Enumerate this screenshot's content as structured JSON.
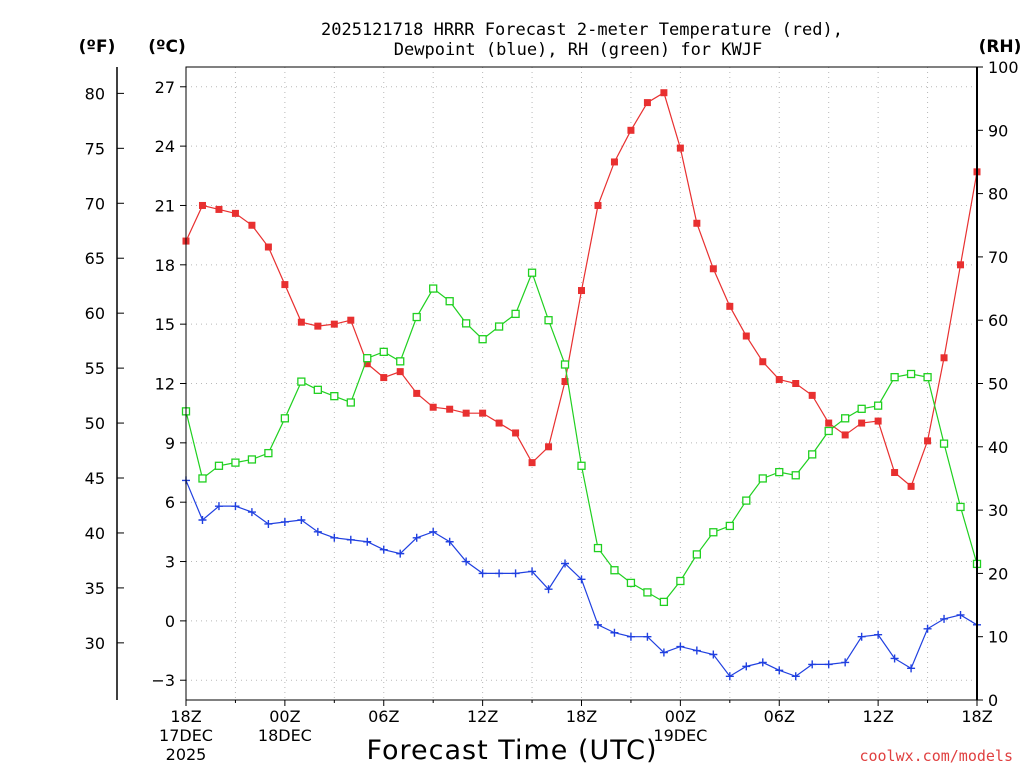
{
  "chart_data": {
    "type": "line",
    "title": "2025121718 HRRR Forecast 2-meter Temperature (red),",
    "subtitle": "Dewpoint (blue), RH (green) for KWJF",
    "xlabel": "Forecast Time (UTC)",
    "credit": "coolwx.com/models",
    "units": {
      "fahrenheit": "(ºF)",
      "celsius": "(ºC)",
      "rh": "(RH)"
    },
    "x_range": [
      0,
      48
    ],
    "ylim_celsius": [
      -4,
      28
    ],
    "ylim_rh": [
      0,
      100
    ],
    "celsius_ticks": [
      -3,
      0,
      3,
      6,
      9,
      12,
      15,
      18,
      21,
      24,
      27
    ],
    "fahrenheit_ticks": [
      30,
      35,
      40,
      45,
      50,
      55,
      60,
      65,
      70,
      75,
      80
    ],
    "rh_ticks": [
      0,
      10,
      20,
      30,
      40,
      50,
      60,
      70,
      80,
      90,
      100
    ],
    "x_ticks": [
      {
        "hour": 0,
        "lines": [
          "18Z",
          "17DEC",
          "2025"
        ]
      },
      {
        "hour": 6,
        "lines": [
          "00Z",
          "18DEC"
        ]
      },
      {
        "hour": 12,
        "lines": [
          "06Z"
        ]
      },
      {
        "hour": 18,
        "lines": [
          "12Z"
        ]
      },
      {
        "hour": 24,
        "lines": [
          "18Z"
        ]
      },
      {
        "hour": 30,
        "lines": [
          "00Z",
          "19DEC"
        ]
      },
      {
        "hour": 36,
        "lines": [
          "06Z"
        ]
      },
      {
        "hour": 42,
        "lines": [
          "12Z"
        ]
      },
      {
        "hour": 48,
        "lines": [
          "18Z"
        ]
      }
    ],
    "series": [
      {
        "name": "2-meter Temperature",
        "axis": "celsius",
        "color": "#e83030",
        "marker": "filled-square",
        "values": [
          19.2,
          21.0,
          20.8,
          20.6,
          20.0,
          18.9,
          17.0,
          15.1,
          14.9,
          15.0,
          15.2,
          13.0,
          12.3,
          12.6,
          11.5,
          10.8,
          10.7,
          10.5,
          10.5,
          10.0,
          9.5,
          8.0,
          8.8,
          12.1,
          16.7,
          21.0,
          23.2,
          24.8,
          26.2,
          26.7,
          23.9,
          20.1,
          17.8,
          15.9,
          14.4,
          13.1,
          12.2,
          12.0,
          11.4,
          10.0,
          9.4,
          10.0,
          10.1,
          7.5,
          6.8,
          9.1,
          13.3,
          18.0,
          22.7
        ]
      },
      {
        "name": "Dewpoint",
        "axis": "celsius",
        "color": "#2040e0",
        "marker": "plus",
        "values": [
          7.1,
          5.1,
          5.8,
          5.8,
          5.5,
          4.9,
          5.0,
          5.1,
          4.5,
          4.2,
          4.1,
          4.0,
          3.6,
          3.4,
          4.2,
          4.5,
          4.0,
          3.0,
          2.4,
          2.4,
          2.4,
          2.5,
          1.6,
          2.9,
          2.1,
          -0.2,
          -0.6,
          -0.8,
          -0.8,
          -1.6,
          -1.3,
          -1.5,
          -1.7,
          -2.8,
          -2.3,
          -2.1,
          -2.5,
          -2.8,
          -2.2,
          -2.2,
          -2.1,
          -0.8,
          -0.7,
          -1.9,
          -2.4,
          -0.4,
          0.1,
          0.3,
          -0.2
        ]
      },
      {
        "name": "RH",
        "axis": "rh",
        "color": "#20d020",
        "marker": "open-square",
        "values": [
          45.6,
          35.0,
          37.0,
          37.5,
          38.0,
          39.0,
          44.5,
          50.3,
          49.0,
          48.0,
          47.0,
          54.0,
          55.0,
          53.5,
          60.5,
          65.0,
          63.0,
          59.5,
          57.0,
          59.0,
          61.0,
          67.5,
          60.0,
          53.0,
          37.0,
          24.0,
          20.5,
          18.5,
          17.0,
          15.5,
          18.8,
          23.0,
          26.5,
          27.5,
          31.5,
          35.0,
          36.0,
          35.5,
          38.8,
          42.5,
          44.5,
          46.0,
          46.5,
          51.0,
          51.5,
          51.0,
          40.5,
          30.5,
          21.5
        ]
      }
    ]
  }
}
